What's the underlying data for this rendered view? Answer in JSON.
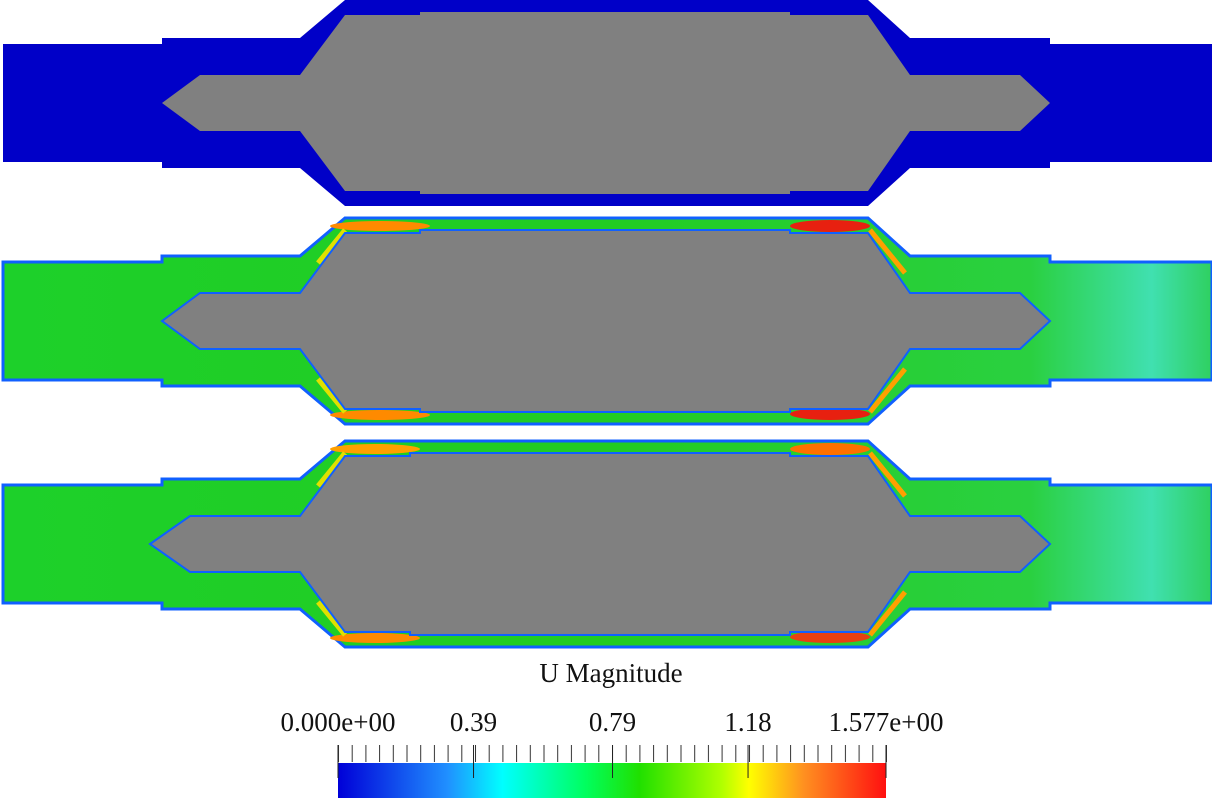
{
  "colorbar": {
    "title": "U Magnitude",
    "range": [
      0,
      1.577
    ],
    "ticks": [
      {
        "value": 0,
        "label": "0.000e+00"
      },
      {
        "value": 0.39,
        "label": "0.39"
      },
      {
        "value": 0.79,
        "label": "0.79"
      },
      {
        "value": 1.18,
        "label": "1.18"
      },
      {
        "value": 1.577,
        "label": "1.577e+00"
      }
    ]
  }
}
